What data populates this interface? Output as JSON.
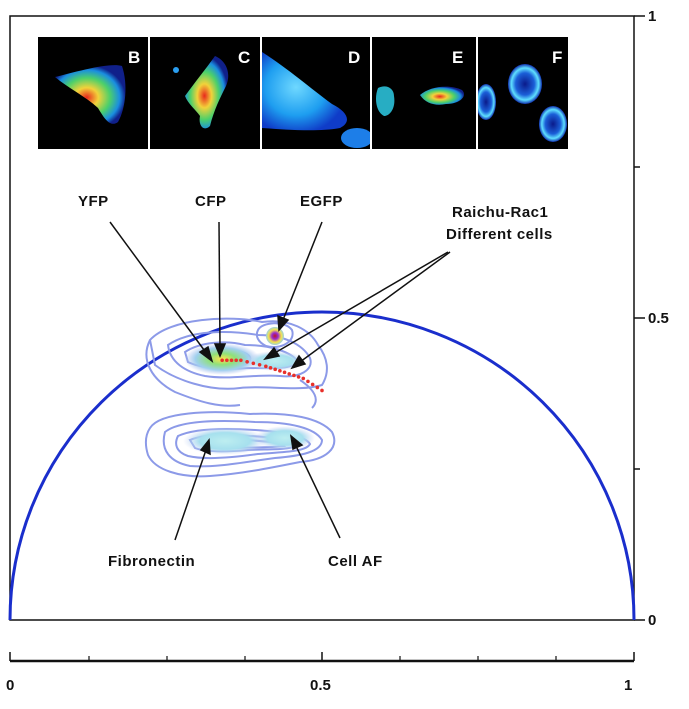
{
  "chart_data": {
    "type": "scatter",
    "description_kind": "phasor plot",
    "xlim": [
      0,
      1
    ],
    "ylim": [
      0,
      1
    ],
    "x_ticks": [
      "0",
      "0.5",
      "1"
    ],
    "y_ticks": [
      "0",
      "0.5",
      "1"
    ],
    "grid": false,
    "semicircle": {
      "center": [
        0.5,
        0
      ],
      "radius": 0.5,
      "color": "#1a2ecc"
    },
    "series": [
      {
        "name": "YFP",
        "points": [
          [
            0.33,
            0.43
          ]
        ]
      },
      {
        "name": "CFP",
        "points": [
          [
            0.34,
            0.44
          ]
        ]
      },
      {
        "name": "EGFP",
        "points": [
          [
            0.42,
            0.46
          ]
        ]
      },
      {
        "name": "Raichu-Rac1 Different cells",
        "points": [
          [
            0.34,
            0.43
          ],
          [
            0.37,
            0.43
          ],
          [
            0.41,
            0.42
          ],
          [
            0.44,
            0.41
          ],
          [
            0.47,
            0.4
          ],
          [
            0.5,
            0.38
          ]
        ]
      },
      {
        "name": "Fibronectin",
        "points": [
          [
            0.32,
            0.29
          ]
        ]
      },
      {
        "name": "Cell AF",
        "points": [
          [
            0.45,
            0.3
          ]
        ]
      }
    ],
    "annotations": [
      "YFP",
      "CFP",
      "EGFP",
      "Raichu-Rac1",
      "Different cells",
      "Fibronectin",
      "Cell AF"
    ],
    "inset_panels": [
      "B",
      "C",
      "D",
      "E",
      "F"
    ],
    "colors": {
      "semicircle": "#1a2ecc",
      "contour": "#8c9ae8",
      "trajectory": "#e8302a"
    }
  }
}
